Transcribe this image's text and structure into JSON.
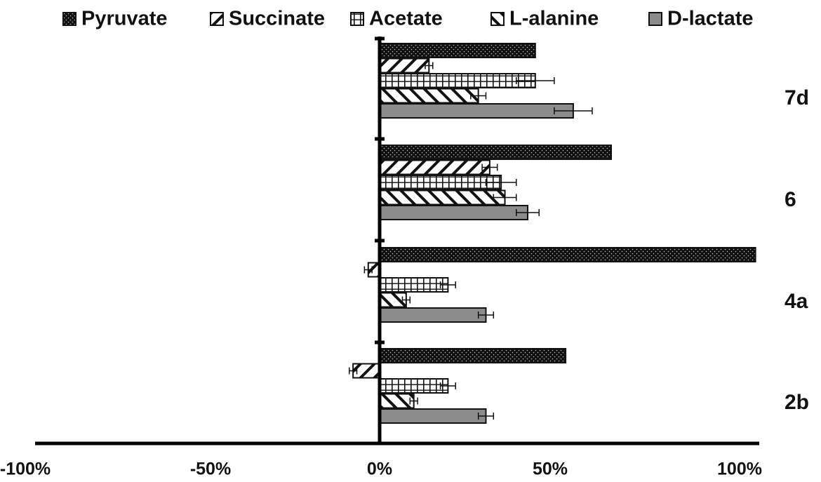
{
  "chart_data": {
    "type": "bar",
    "orientation": "horizontal",
    "categories": [
      "2b",
      "4a",
      "6",
      "7d"
    ],
    "series": [
      {
        "name": "Pyruvate",
        "pattern": "dots",
        "values": [
          0.49,
          0.99,
          0.61,
          0.41
        ],
        "errors": [
          0,
          0,
          0,
          0
        ]
      },
      {
        "name": "Succinate",
        "pattern": "diagonal",
        "values": [
          -0.07,
          -0.03,
          0.29,
          0.13
        ],
        "errors": [
          0.01,
          0.01,
          0.02,
          0.01
        ]
      },
      {
        "name": "Acetate",
        "pattern": "grid",
        "values": [
          0.18,
          0.18,
          0.32,
          0.41
        ],
        "errors": [
          0.02,
          0.02,
          0.04,
          0.05
        ]
      },
      {
        "name": "L-alanine",
        "pattern": "backdiag",
        "values": [
          0.09,
          0.07,
          0.33,
          0.26
        ],
        "errors": [
          0.01,
          0.01,
          0.03,
          0.02
        ]
      },
      {
        "name": "D-lactate",
        "pattern": "solid-gray",
        "values": [
          0.28,
          0.28,
          0.39,
          0.51
        ],
        "errors": [
          0.02,
          0.02,
          0.03,
          0.05
        ]
      }
    ],
    "xlim": [
      -1.0,
      1.0
    ],
    "xticks": [
      "-100%",
      "-50%",
      "0%",
      "50%",
      "100%"
    ],
    "title": "",
    "xlabel": "",
    "ylabel": "",
    "legend_position": "top",
    "grid": false
  }
}
